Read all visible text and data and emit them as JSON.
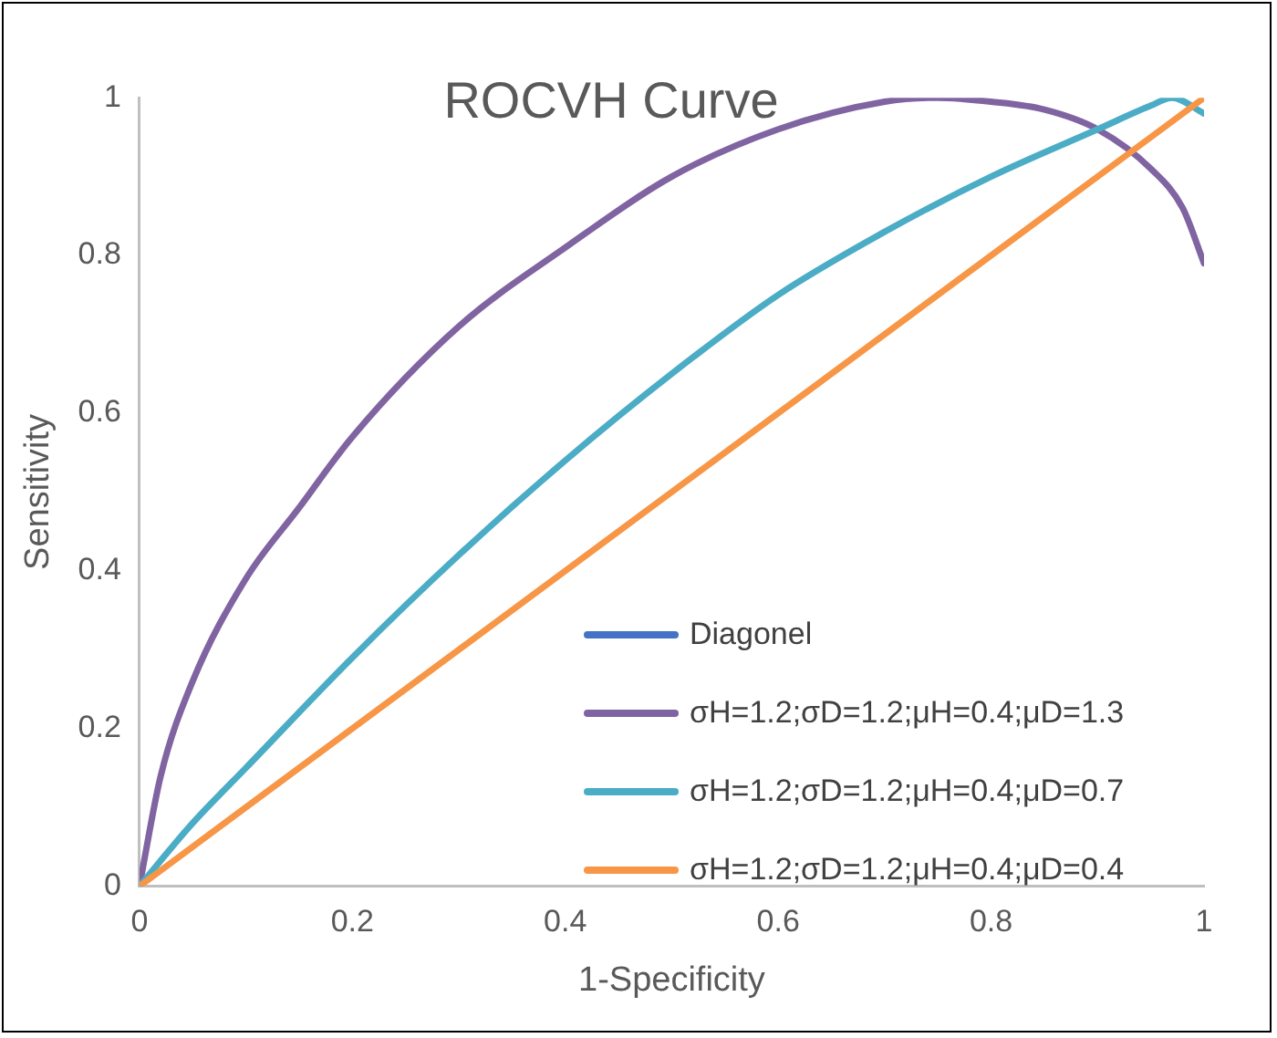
{
  "chart_data": {
    "type": "line",
    "title": "ROCVH Curve",
    "xlabel": "1-Specificity",
    "ylabel": "Sensitivity",
    "xlim": [
      0,
      1
    ],
    "xticks": [
      0,
      0.2,
      0.4,
      0.6,
      0.8,
      1
    ],
    "ylim": [
      0,
      1
    ],
    "yticks": [
      0,
      0.2,
      0.4,
      0.6,
      0.8,
      1
    ],
    "grid": false,
    "legend": "bottom right",
    "marker": "none",
    "line_style": "solid",
    "series": [
      {
        "name": "Diagonel",
        "color": "#4472c4"
      },
      {
        "name": "σH=1.2;σD=1.2;μH=0.4;μD=1.3",
        "color": "#8064a2",
        "x": [
          0,
          0.02,
          0.05,
          0.1,
          0.15,
          0.2,
          0.3,
          0.4,
          0.5,
          0.6,
          0.7,
          0.75,
          0.8,
          0.85,
          0.9,
          0.95,
          0.98,
          1
        ],
        "values": [
          0,
          0.14,
          0.26,
          0.39,
          0.48,
          0.57,
          0.71,
          0.81,
          0.9,
          0.96,
          0.995,
          1,
          0.995,
          0.985,
          0.96,
          0.91,
          0.86,
          0.79
        ]
      },
      {
        "name": "σH=1.2;σD=1.2;μH=0.4;μD=0.7",
        "color": "#4bacc6",
        "x": [
          0,
          0.05,
          0.1,
          0.2,
          0.3,
          0.4,
          0.5,
          0.6,
          0.7,
          0.8,
          0.9,
          0.95,
          0.97,
          1
        ],
        "values": [
          0,
          0.08,
          0.15,
          0.29,
          0.42,
          0.54,
          0.65,
          0.75,
          0.83,
          0.9,
          0.96,
          0.99,
          1,
          0.98
        ]
      },
      {
        "name": "σH=1.2;σD=1.2;μH=0.4;μD=0.4",
        "color": "#f79646",
        "x": [
          0,
          1
        ],
        "values": [
          0,
          1
        ]
      }
    ]
  }
}
